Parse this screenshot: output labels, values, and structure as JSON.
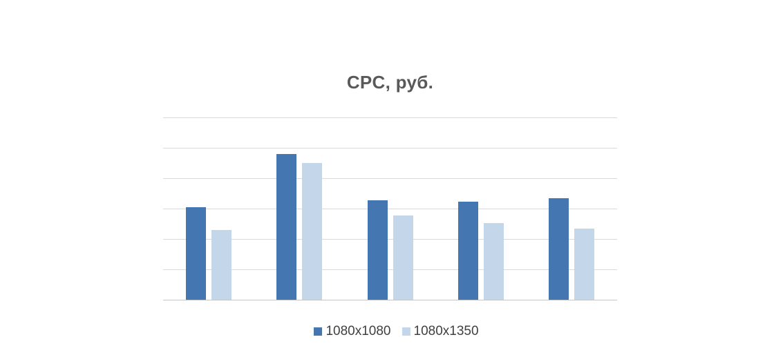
{
  "chart_data": {
    "type": "bar",
    "title": "CPC, руб.",
    "group_count": 5,
    "series": [
      {
        "name": "1080x1080",
        "color": "#4477B2",
        "values": [
          3.05,
          4.8,
          3.27,
          3.23,
          3.34
        ]
      },
      {
        "name": "1080x1350",
        "color": "#C3D6EA",
        "values": [
          2.3,
          4.5,
          2.77,
          2.52,
          2.34
        ]
      }
    ],
    "value_axis": {
      "min": 0,
      "max": 6,
      "gridline_interval": 1,
      "tick_labels_visible": false,
      "unit_note": "values estimated in gridline units; no numeric axis labels shown"
    },
    "category_axis": {
      "labels_visible": false
    },
    "grid": true,
    "legend_position": "bottom",
    "colors": {
      "background": "#ffffff",
      "gridline": "#d9d9d9",
      "axis_line": "#c6c6c6",
      "title_text": "#595959",
      "legend_text": "#404040"
    }
  }
}
